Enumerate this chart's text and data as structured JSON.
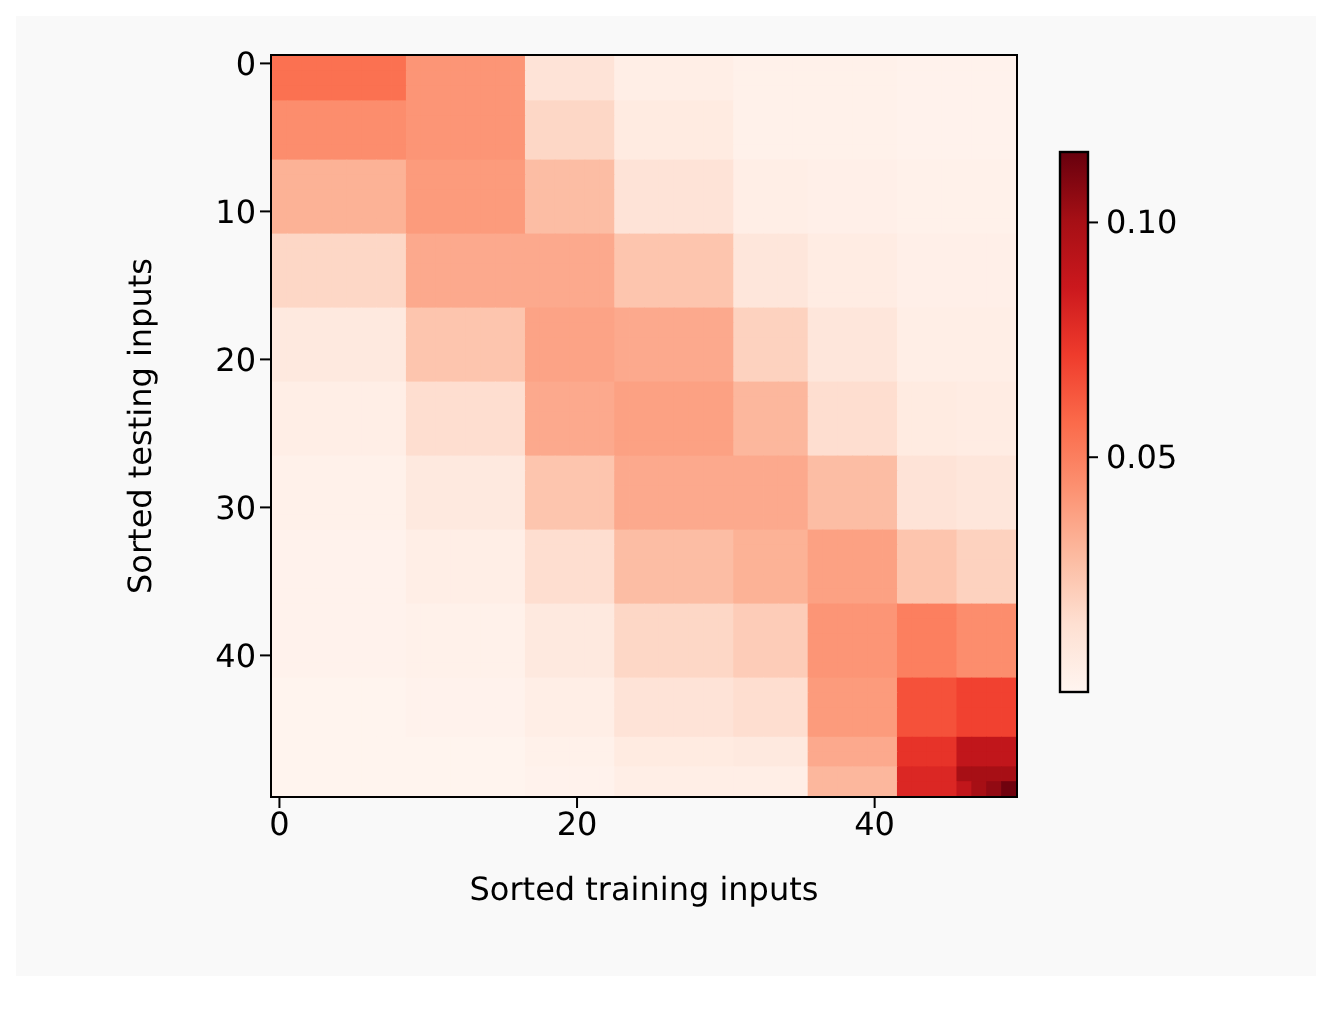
{
  "chart_data": {
    "type": "heatmap",
    "xlabel": "Sorted training inputs",
    "ylabel": "Sorted testing inputs",
    "categories": [
      "0",
      null,
      null,
      null,
      null,
      null,
      null,
      null,
      null,
      null,
      null,
      null,
      null,
      null,
      null,
      null,
      null,
      null,
      null,
      null,
      "20",
      null,
      null,
      null,
      null,
      null,
      null,
      null,
      null,
      null,
      null,
      null,
      null,
      null,
      null,
      null,
      null,
      null,
      null,
      null,
      "40",
      null,
      null,
      null,
      null,
      null,
      null,
      null,
      null,
      null
    ],
    "y_categories": [
      "0",
      null,
      null,
      null,
      null,
      null,
      null,
      null,
      null,
      null,
      "10",
      null,
      null,
      null,
      null,
      null,
      null,
      null,
      null,
      null,
      "20",
      null,
      null,
      null,
      null,
      null,
      null,
      null,
      null,
      null,
      "30",
      null,
      null,
      null,
      null,
      null,
      null,
      null,
      null,
      null,
      "40",
      null,
      null,
      null,
      null,
      null,
      null,
      null,
      null,
      null
    ],
    "clim": [
      0,
      0.115
    ],
    "cticks": [
      0.05,
      {
        "value": 0.1,
        "label": "0.10"
      }
    ],
    "cells": [
      [
        0.055,
        0.055,
        0.055,
        0.055,
        0.055,
        0.055,
        0.055,
        0.055,
        0.055,
        0.042,
        0.042,
        0.042,
        0.042,
        0.042,
        0.042,
        0.042,
        0.042,
        0.012,
        0.012,
        0.012,
        0.012,
        0.012,
        0.012,
        0.005,
        0.005,
        0.005,
        0.005,
        0.005,
        0.005,
        0.005,
        0.005,
        0.003,
        0.003,
        0.003,
        0.003,
        0.003,
        0.003,
        0.003,
        0.003,
        0.003,
        0.003,
        0.003,
        0.002,
        0.002,
        0.002,
        0.002,
        0.002,
        0.002,
        0.002,
        0.002
      ],
      [
        0.055,
        0.055,
        0.055,
        0.055,
        0.055,
        0.055,
        0.055,
        0.055,
        0.055,
        0.042,
        0.042,
        0.042,
        0.042,
        0.042,
        0.042,
        0.042,
        0.042,
        0.012,
        0.012,
        0.012,
        0.012,
        0.012,
        0.012,
        0.005,
        0.005,
        0.005,
        0.005,
        0.005,
        0.005,
        0.005,
        0.005,
        0.003,
        0.003,
        0.003,
        0.003,
        0.003,
        0.003,
        0.003,
        0.003,
        0.003,
        0.003,
        0.003,
        0.002,
        0.002,
        0.002,
        0.002,
        0.002,
        0.002,
        0.002,
        0.002
      ],
      [
        0.055,
        0.055,
        0.055,
        0.055,
        0.055,
        0.055,
        0.055,
        0.055,
        0.055,
        0.042,
        0.042,
        0.042,
        0.042,
        0.042,
        0.042,
        0.042,
        0.042,
        0.012,
        0.012,
        0.012,
        0.012,
        0.012,
        0.012,
        0.005,
        0.005,
        0.005,
        0.005,
        0.005,
        0.005,
        0.005,
        0.005,
        0.003,
        0.003,
        0.003,
        0.003,
        0.003,
        0.003,
        0.003,
        0.003,
        0.003,
        0.003,
        0.003,
        0.002,
        0.002,
        0.002,
        0.002,
        0.002,
        0.002,
        0.002,
        0.002
      ],
      [
        0.045,
        0.045,
        0.045,
        0.045,
        0.045,
        0.045,
        0.045,
        0.045,
        0.045,
        0.042,
        0.042,
        0.042,
        0.042,
        0.042,
        0.042,
        0.042,
        0.042,
        0.018,
        0.018,
        0.018,
        0.018,
        0.018,
        0.018,
        0.007,
        0.007,
        0.007,
        0.007,
        0.007,
        0.007,
        0.007,
        0.007,
        0.003,
        0.003,
        0.003,
        0.003,
        0.003,
        0.003,
        0.003,
        0.003,
        0.003,
        0.003,
        0.003,
        0.002,
        0.002,
        0.002,
        0.002,
        0.002,
        0.002,
        0.002,
        0.002
      ],
      [
        0.045,
        0.045,
        0.045,
        0.045,
        0.045,
        0.045,
        0.045,
        0.045,
        0.045,
        0.042,
        0.042,
        0.042,
        0.042,
        0.042,
        0.042,
        0.042,
        0.042,
        0.018,
        0.018,
        0.018,
        0.018,
        0.018,
        0.018,
        0.007,
        0.007,
        0.007,
        0.007,
        0.007,
        0.007,
        0.007,
        0.007,
        0.003,
        0.003,
        0.003,
        0.003,
        0.003,
        0.003,
        0.003,
        0.003,
        0.003,
        0.003,
        0.003,
        0.002,
        0.002,
        0.002,
        0.002,
        0.002,
        0.002,
        0.002,
        0.002
      ],
      [
        0.045,
        0.045,
        0.045,
        0.045,
        0.045,
        0.045,
        0.045,
        0.045,
        0.045,
        0.042,
        0.042,
        0.042,
        0.042,
        0.042,
        0.042,
        0.042,
        0.042,
        0.018,
        0.018,
        0.018,
        0.018,
        0.018,
        0.018,
        0.007,
        0.007,
        0.007,
        0.007,
        0.007,
        0.007,
        0.007,
        0.007,
        0.003,
        0.003,
        0.003,
        0.003,
        0.003,
        0.003,
        0.003,
        0.003,
        0.003,
        0.003,
        0.003,
        0.002,
        0.002,
        0.002,
        0.002,
        0.002,
        0.002,
        0.002,
        0.002
      ],
      [
        0.045,
        0.045,
        0.045,
        0.045,
        0.045,
        0.045,
        0.045,
        0.045,
        0.045,
        0.042,
        0.042,
        0.042,
        0.042,
        0.042,
        0.042,
        0.042,
        0.042,
        0.018,
        0.018,
        0.018,
        0.018,
        0.018,
        0.018,
        0.007,
        0.007,
        0.007,
        0.007,
        0.007,
        0.007,
        0.007,
        0.007,
        0.003,
        0.003,
        0.003,
        0.003,
        0.003,
        0.003,
        0.003,
        0.003,
        0.003,
        0.003,
        0.003,
        0.002,
        0.002,
        0.002,
        0.002,
        0.002,
        0.002,
        0.002,
        0.002
      ],
      [
        0.032,
        0.032,
        0.032,
        0.032,
        0.032,
        0.032,
        0.032,
        0.032,
        0.032,
        0.04,
        0.04,
        0.04,
        0.04,
        0.04,
        0.04,
        0.04,
        0.04,
        0.028,
        0.028,
        0.028,
        0.028,
        0.028,
        0.028,
        0.012,
        0.012,
        0.012,
        0.012,
        0.012,
        0.012,
        0.012,
        0.012,
        0.005,
        0.005,
        0.005,
        0.005,
        0.005,
        0.004,
        0.004,
        0.004,
        0.004,
        0.004,
        0.004,
        0.003,
        0.003,
        0.003,
        0.003,
        0.003,
        0.003,
        0.003,
        0.003
      ],
      [
        0.032,
        0.032,
        0.032,
        0.032,
        0.032,
        0.032,
        0.032,
        0.032,
        0.032,
        0.04,
        0.04,
        0.04,
        0.04,
        0.04,
        0.04,
        0.04,
        0.04,
        0.028,
        0.028,
        0.028,
        0.028,
        0.028,
        0.028,
        0.012,
        0.012,
        0.012,
        0.012,
        0.012,
        0.012,
        0.012,
        0.012,
        0.005,
        0.005,
        0.005,
        0.005,
        0.005,
        0.004,
        0.004,
        0.004,
        0.004,
        0.004,
        0.004,
        0.003,
        0.003,
        0.003,
        0.003,
        0.003,
        0.003,
        0.003,
        0.003
      ],
      [
        0.032,
        0.032,
        0.032,
        0.032,
        0.032,
        0.032,
        0.032,
        0.032,
        0.032,
        0.04,
        0.04,
        0.04,
        0.04,
        0.04,
        0.04,
        0.04,
        0.04,
        0.028,
        0.028,
        0.028,
        0.028,
        0.028,
        0.028,
        0.012,
        0.012,
        0.012,
        0.012,
        0.012,
        0.012,
        0.012,
        0.012,
        0.005,
        0.005,
        0.005,
        0.005,
        0.005,
        0.004,
        0.004,
        0.004,
        0.004,
        0.004,
        0.004,
        0.003,
        0.003,
        0.003,
        0.003,
        0.003,
        0.003,
        0.003,
        0.003
      ],
      [
        0.032,
        0.032,
        0.032,
        0.032,
        0.032,
        0.032,
        0.032,
        0.032,
        0.032,
        0.04,
        0.04,
        0.04,
        0.04,
        0.04,
        0.04,
        0.04,
        0.04,
        0.028,
        0.028,
        0.028,
        0.028,
        0.028,
        0.028,
        0.012,
        0.012,
        0.012,
        0.012,
        0.012,
        0.012,
        0.012,
        0.012,
        0.005,
        0.005,
        0.005,
        0.005,
        0.005,
        0.004,
        0.004,
        0.004,
        0.004,
        0.004,
        0.004,
        0.003,
        0.003,
        0.003,
        0.003,
        0.003,
        0.003,
        0.003,
        0.003
      ],
      [
        0.032,
        0.032,
        0.032,
        0.032,
        0.032,
        0.032,
        0.032,
        0.032,
        0.032,
        0.04,
        0.04,
        0.04,
        0.04,
        0.04,
        0.04,
        0.04,
        0.04,
        0.028,
        0.028,
        0.028,
        0.028,
        0.028,
        0.028,
        0.012,
        0.012,
        0.012,
        0.012,
        0.012,
        0.012,
        0.012,
        0.012,
        0.005,
        0.005,
        0.005,
        0.005,
        0.005,
        0.004,
        0.004,
        0.004,
        0.004,
        0.004,
        0.004,
        0.003,
        0.003,
        0.003,
        0.003,
        0.003,
        0.003,
        0.003,
        0.003
      ],
      [
        0.018,
        0.018,
        0.018,
        0.018,
        0.018,
        0.018,
        0.018,
        0.018,
        0.018,
        0.035,
        0.035,
        0.035,
        0.035,
        0.035,
        0.035,
        0.035,
        0.035,
        0.035,
        0.035,
        0.035,
        0.035,
        0.035,
        0.035,
        0.025,
        0.025,
        0.025,
        0.025,
        0.025,
        0.025,
        0.025,
        0.025,
        0.01,
        0.01,
        0.01,
        0.01,
        0.01,
        0.006,
        0.006,
        0.006,
        0.006,
        0.006,
        0.006,
        0.004,
        0.004,
        0.004,
        0.004,
        0.004,
        0.004,
        0.004,
        0.004
      ],
      [
        0.018,
        0.018,
        0.018,
        0.018,
        0.018,
        0.018,
        0.018,
        0.018,
        0.018,
        0.035,
        0.035,
        0.035,
        0.035,
        0.035,
        0.035,
        0.035,
        0.035,
        0.035,
        0.035,
        0.035,
        0.035,
        0.035,
        0.035,
        0.025,
        0.025,
        0.025,
        0.025,
        0.025,
        0.025,
        0.025,
        0.025,
        0.01,
        0.01,
        0.01,
        0.01,
        0.01,
        0.006,
        0.006,
        0.006,
        0.006,
        0.006,
        0.006,
        0.004,
        0.004,
        0.004,
        0.004,
        0.004,
        0.004,
        0.004,
        0.004
      ],
      [
        0.018,
        0.018,
        0.018,
        0.018,
        0.018,
        0.018,
        0.018,
        0.018,
        0.018,
        0.035,
        0.035,
        0.035,
        0.035,
        0.035,
        0.035,
        0.035,
        0.035,
        0.035,
        0.035,
        0.035,
        0.035,
        0.035,
        0.035,
        0.025,
        0.025,
        0.025,
        0.025,
        0.025,
        0.025,
        0.025,
        0.025,
        0.01,
        0.01,
        0.01,
        0.01,
        0.01,
        0.006,
        0.006,
        0.006,
        0.006,
        0.006,
        0.006,
        0.004,
        0.004,
        0.004,
        0.004,
        0.004,
        0.004,
        0.004,
        0.004
      ],
      [
        0.018,
        0.018,
        0.018,
        0.018,
        0.018,
        0.018,
        0.018,
        0.018,
        0.018,
        0.035,
        0.035,
        0.035,
        0.035,
        0.035,
        0.035,
        0.035,
        0.035,
        0.035,
        0.035,
        0.035,
        0.035,
        0.035,
        0.035,
        0.025,
        0.025,
        0.025,
        0.025,
        0.025,
        0.025,
        0.025,
        0.025,
        0.01,
        0.01,
        0.01,
        0.01,
        0.01,
        0.006,
        0.006,
        0.006,
        0.006,
        0.006,
        0.006,
        0.004,
        0.004,
        0.004,
        0.004,
        0.004,
        0.004,
        0.004,
        0.004
      ],
      [
        0.018,
        0.018,
        0.018,
        0.018,
        0.018,
        0.018,
        0.018,
        0.018,
        0.018,
        0.035,
        0.035,
        0.035,
        0.035,
        0.035,
        0.035,
        0.035,
        0.035,
        0.035,
        0.035,
        0.035,
        0.035,
        0.035,
        0.035,
        0.025,
        0.025,
        0.025,
        0.025,
        0.025,
        0.025,
        0.025,
        0.025,
        0.01,
        0.01,
        0.01,
        0.01,
        0.01,
        0.006,
        0.006,
        0.006,
        0.006,
        0.006,
        0.006,
        0.004,
        0.004,
        0.004,
        0.004,
        0.004,
        0.004,
        0.004,
        0.004
      ],
      [
        0.008,
        0.008,
        0.008,
        0.008,
        0.008,
        0.008,
        0.008,
        0.008,
        0.008,
        0.025,
        0.025,
        0.025,
        0.025,
        0.025,
        0.025,
        0.025,
        0.025,
        0.037,
        0.037,
        0.037,
        0.037,
        0.037,
        0.037,
        0.035,
        0.035,
        0.035,
        0.035,
        0.035,
        0.035,
        0.035,
        0.035,
        0.02,
        0.02,
        0.02,
        0.02,
        0.02,
        0.01,
        0.01,
        0.01,
        0.01,
        0.01,
        0.01,
        0.005,
        0.005,
        0.005,
        0.005,
        0.005,
        0.005,
        0.005,
        0.005
      ],
      [
        0.008,
        0.008,
        0.008,
        0.008,
        0.008,
        0.008,
        0.008,
        0.008,
        0.008,
        0.025,
        0.025,
        0.025,
        0.025,
        0.025,
        0.025,
        0.025,
        0.025,
        0.037,
        0.037,
        0.037,
        0.037,
        0.037,
        0.037,
        0.035,
        0.035,
        0.035,
        0.035,
        0.035,
        0.035,
        0.035,
        0.035,
        0.02,
        0.02,
        0.02,
        0.02,
        0.02,
        0.01,
        0.01,
        0.01,
        0.01,
        0.01,
        0.01,
        0.005,
        0.005,
        0.005,
        0.005,
        0.005,
        0.005,
        0.005,
        0.005
      ],
      [
        0.008,
        0.008,
        0.008,
        0.008,
        0.008,
        0.008,
        0.008,
        0.008,
        0.008,
        0.025,
        0.025,
        0.025,
        0.025,
        0.025,
        0.025,
        0.025,
        0.025,
        0.037,
        0.037,
        0.037,
        0.037,
        0.037,
        0.037,
        0.035,
        0.035,
        0.035,
        0.035,
        0.035,
        0.035,
        0.035,
        0.035,
        0.02,
        0.02,
        0.02,
        0.02,
        0.02,
        0.01,
        0.01,
        0.01,
        0.01,
        0.01,
        0.01,
        0.005,
        0.005,
        0.005,
        0.005,
        0.005,
        0.005,
        0.005,
        0.005
      ],
      [
        0.008,
        0.008,
        0.008,
        0.008,
        0.008,
        0.008,
        0.008,
        0.008,
        0.008,
        0.025,
        0.025,
        0.025,
        0.025,
        0.025,
        0.025,
        0.025,
        0.025,
        0.037,
        0.037,
        0.037,
        0.037,
        0.037,
        0.037,
        0.035,
        0.035,
        0.035,
        0.035,
        0.035,
        0.035,
        0.035,
        0.035,
        0.02,
        0.02,
        0.02,
        0.02,
        0.02,
        0.01,
        0.01,
        0.01,
        0.01,
        0.01,
        0.01,
        0.005,
        0.005,
        0.005,
        0.005,
        0.005,
        0.005,
        0.005,
        0.005
      ],
      [
        0.008,
        0.008,
        0.008,
        0.008,
        0.008,
        0.008,
        0.008,
        0.008,
        0.008,
        0.025,
        0.025,
        0.025,
        0.025,
        0.025,
        0.025,
        0.025,
        0.025,
        0.037,
        0.037,
        0.037,
        0.037,
        0.037,
        0.037,
        0.035,
        0.035,
        0.035,
        0.035,
        0.035,
        0.035,
        0.035,
        0.035,
        0.02,
        0.02,
        0.02,
        0.02,
        0.02,
        0.01,
        0.01,
        0.01,
        0.01,
        0.01,
        0.01,
        0.005,
        0.005,
        0.005,
        0.005,
        0.005,
        0.005,
        0.005,
        0.005
      ],
      [
        0.005,
        0.005,
        0.005,
        0.005,
        0.005,
        0.005,
        0.005,
        0.005,
        0.005,
        0.015,
        0.015,
        0.015,
        0.015,
        0.015,
        0.015,
        0.015,
        0.015,
        0.035,
        0.035,
        0.035,
        0.035,
        0.035,
        0.035,
        0.038,
        0.038,
        0.038,
        0.038,
        0.038,
        0.038,
        0.038,
        0.038,
        0.03,
        0.03,
        0.03,
        0.03,
        0.03,
        0.015,
        0.015,
        0.015,
        0.015,
        0.015,
        0.015,
        0.007,
        0.007,
        0.007,
        0.007,
        0.006,
        0.006,
        0.006,
        0.006
      ],
      [
        0.005,
        0.005,
        0.005,
        0.005,
        0.005,
        0.005,
        0.005,
        0.005,
        0.005,
        0.015,
        0.015,
        0.015,
        0.015,
        0.015,
        0.015,
        0.015,
        0.015,
        0.035,
        0.035,
        0.035,
        0.035,
        0.035,
        0.035,
        0.038,
        0.038,
        0.038,
        0.038,
        0.038,
        0.038,
        0.038,
        0.038,
        0.03,
        0.03,
        0.03,
        0.03,
        0.03,
        0.015,
        0.015,
        0.015,
        0.015,
        0.015,
        0.015,
        0.007,
        0.007,
        0.007,
        0.007,
        0.006,
        0.006,
        0.006,
        0.006
      ],
      [
        0.005,
        0.005,
        0.005,
        0.005,
        0.005,
        0.005,
        0.005,
        0.005,
        0.005,
        0.015,
        0.015,
        0.015,
        0.015,
        0.015,
        0.015,
        0.015,
        0.015,
        0.035,
        0.035,
        0.035,
        0.035,
        0.035,
        0.035,
        0.038,
        0.038,
        0.038,
        0.038,
        0.038,
        0.038,
        0.038,
        0.038,
        0.03,
        0.03,
        0.03,
        0.03,
        0.03,
        0.015,
        0.015,
        0.015,
        0.015,
        0.015,
        0.015,
        0.007,
        0.007,
        0.007,
        0.007,
        0.006,
        0.006,
        0.006,
        0.006
      ],
      [
        0.005,
        0.005,
        0.005,
        0.005,
        0.005,
        0.005,
        0.005,
        0.005,
        0.005,
        0.015,
        0.015,
        0.015,
        0.015,
        0.015,
        0.015,
        0.015,
        0.015,
        0.035,
        0.035,
        0.035,
        0.035,
        0.035,
        0.035,
        0.038,
        0.038,
        0.038,
        0.038,
        0.038,
        0.038,
        0.038,
        0.038,
        0.03,
        0.03,
        0.03,
        0.03,
        0.03,
        0.015,
        0.015,
        0.015,
        0.015,
        0.015,
        0.015,
        0.007,
        0.007,
        0.007,
        0.007,
        0.006,
        0.006,
        0.006,
        0.006
      ],
      [
        0.005,
        0.005,
        0.005,
        0.005,
        0.005,
        0.005,
        0.005,
        0.005,
        0.005,
        0.015,
        0.015,
        0.015,
        0.015,
        0.015,
        0.015,
        0.015,
        0.015,
        0.035,
        0.035,
        0.035,
        0.035,
        0.035,
        0.035,
        0.038,
        0.038,
        0.038,
        0.038,
        0.038,
        0.038,
        0.038,
        0.038,
        0.03,
        0.03,
        0.03,
        0.03,
        0.03,
        0.015,
        0.015,
        0.015,
        0.015,
        0.015,
        0.015,
        0.007,
        0.007,
        0.007,
        0.007,
        0.006,
        0.006,
        0.006,
        0.006
      ],
      [
        0.003,
        0.003,
        0.003,
        0.003,
        0.003,
        0.003,
        0.003,
        0.003,
        0.003,
        0.008,
        0.008,
        0.008,
        0.008,
        0.008,
        0.008,
        0.008,
        0.008,
        0.025,
        0.025,
        0.025,
        0.025,
        0.025,
        0.025,
        0.035,
        0.035,
        0.035,
        0.035,
        0.035,
        0.035,
        0.035,
        0.035,
        0.035,
        0.035,
        0.035,
        0.035,
        0.035,
        0.028,
        0.028,
        0.028,
        0.028,
        0.028,
        0.028,
        0.012,
        0.012,
        0.012,
        0.012,
        0.01,
        0.01,
        0.01,
        0.01
      ],
      [
        0.003,
        0.003,
        0.003,
        0.003,
        0.003,
        0.003,
        0.003,
        0.003,
        0.003,
        0.008,
        0.008,
        0.008,
        0.008,
        0.008,
        0.008,
        0.008,
        0.008,
        0.025,
        0.025,
        0.025,
        0.025,
        0.025,
        0.025,
        0.035,
        0.035,
        0.035,
        0.035,
        0.035,
        0.035,
        0.035,
        0.035,
        0.035,
        0.035,
        0.035,
        0.035,
        0.035,
        0.028,
        0.028,
        0.028,
        0.028,
        0.028,
        0.028,
        0.012,
        0.012,
        0.012,
        0.012,
        0.01,
        0.01,
        0.01,
        0.01
      ],
      [
        0.003,
        0.003,
        0.003,
        0.003,
        0.003,
        0.003,
        0.003,
        0.003,
        0.003,
        0.008,
        0.008,
        0.008,
        0.008,
        0.008,
        0.008,
        0.008,
        0.008,
        0.025,
        0.025,
        0.025,
        0.025,
        0.025,
        0.025,
        0.035,
        0.035,
        0.035,
        0.035,
        0.035,
        0.035,
        0.035,
        0.035,
        0.035,
        0.035,
        0.035,
        0.035,
        0.035,
        0.028,
        0.028,
        0.028,
        0.028,
        0.028,
        0.028,
        0.012,
        0.012,
        0.012,
        0.012,
        0.01,
        0.01,
        0.01,
        0.01
      ],
      [
        0.003,
        0.003,
        0.003,
        0.003,
        0.003,
        0.003,
        0.003,
        0.003,
        0.003,
        0.008,
        0.008,
        0.008,
        0.008,
        0.008,
        0.008,
        0.008,
        0.008,
        0.025,
        0.025,
        0.025,
        0.025,
        0.025,
        0.025,
        0.035,
        0.035,
        0.035,
        0.035,
        0.035,
        0.035,
        0.035,
        0.035,
        0.035,
        0.035,
        0.035,
        0.035,
        0.035,
        0.028,
        0.028,
        0.028,
        0.028,
        0.028,
        0.028,
        0.012,
        0.012,
        0.012,
        0.012,
        0.01,
        0.01,
        0.01,
        0.01
      ],
      [
        0.003,
        0.003,
        0.003,
        0.003,
        0.003,
        0.003,
        0.003,
        0.003,
        0.003,
        0.008,
        0.008,
        0.008,
        0.008,
        0.008,
        0.008,
        0.008,
        0.008,
        0.025,
        0.025,
        0.025,
        0.025,
        0.025,
        0.025,
        0.035,
        0.035,
        0.035,
        0.035,
        0.035,
        0.035,
        0.035,
        0.035,
        0.035,
        0.035,
        0.035,
        0.035,
        0.035,
        0.028,
        0.028,
        0.028,
        0.028,
        0.028,
        0.028,
        0.012,
        0.012,
        0.012,
        0.012,
        0.01,
        0.01,
        0.01,
        0.01
      ],
      [
        0.002,
        0.002,
        0.002,
        0.002,
        0.002,
        0.002,
        0.002,
        0.002,
        0.002,
        0.005,
        0.005,
        0.005,
        0.005,
        0.005,
        0.005,
        0.005,
        0.005,
        0.015,
        0.015,
        0.015,
        0.015,
        0.015,
        0.015,
        0.028,
        0.028,
        0.028,
        0.028,
        0.028,
        0.028,
        0.028,
        0.028,
        0.032,
        0.032,
        0.032,
        0.032,
        0.032,
        0.038,
        0.038,
        0.038,
        0.038,
        0.038,
        0.038,
        0.025,
        0.025,
        0.025,
        0.025,
        0.02,
        0.02,
        0.02,
        0.02
      ],
      [
        0.002,
        0.002,
        0.002,
        0.002,
        0.002,
        0.002,
        0.002,
        0.002,
        0.002,
        0.005,
        0.005,
        0.005,
        0.005,
        0.005,
        0.005,
        0.005,
        0.005,
        0.015,
        0.015,
        0.015,
        0.015,
        0.015,
        0.015,
        0.028,
        0.028,
        0.028,
        0.028,
        0.028,
        0.028,
        0.028,
        0.028,
        0.032,
        0.032,
        0.032,
        0.032,
        0.032,
        0.038,
        0.038,
        0.038,
        0.038,
        0.038,
        0.038,
        0.025,
        0.025,
        0.025,
        0.025,
        0.02,
        0.02,
        0.02,
        0.02
      ],
      [
        0.002,
        0.002,
        0.002,
        0.002,
        0.002,
        0.002,
        0.002,
        0.002,
        0.002,
        0.005,
        0.005,
        0.005,
        0.005,
        0.005,
        0.005,
        0.005,
        0.005,
        0.015,
        0.015,
        0.015,
        0.015,
        0.015,
        0.015,
        0.028,
        0.028,
        0.028,
        0.028,
        0.028,
        0.028,
        0.028,
        0.028,
        0.032,
        0.032,
        0.032,
        0.032,
        0.032,
        0.038,
        0.038,
        0.038,
        0.038,
        0.038,
        0.038,
        0.025,
        0.025,
        0.025,
        0.025,
        0.02,
        0.02,
        0.02,
        0.02
      ],
      [
        0.002,
        0.002,
        0.002,
        0.002,
        0.002,
        0.002,
        0.002,
        0.002,
        0.002,
        0.005,
        0.005,
        0.005,
        0.005,
        0.005,
        0.005,
        0.005,
        0.005,
        0.015,
        0.015,
        0.015,
        0.015,
        0.015,
        0.015,
        0.028,
        0.028,
        0.028,
        0.028,
        0.028,
        0.028,
        0.028,
        0.028,
        0.032,
        0.032,
        0.032,
        0.032,
        0.032,
        0.038,
        0.038,
        0.038,
        0.038,
        0.038,
        0.038,
        0.025,
        0.025,
        0.025,
        0.025,
        0.02,
        0.02,
        0.02,
        0.02
      ],
      [
        0.002,
        0.002,
        0.002,
        0.002,
        0.002,
        0.002,
        0.002,
        0.002,
        0.002,
        0.005,
        0.005,
        0.005,
        0.005,
        0.005,
        0.005,
        0.005,
        0.005,
        0.015,
        0.015,
        0.015,
        0.015,
        0.015,
        0.015,
        0.028,
        0.028,
        0.028,
        0.028,
        0.028,
        0.028,
        0.028,
        0.028,
        0.032,
        0.032,
        0.032,
        0.032,
        0.032,
        0.038,
        0.038,
        0.038,
        0.038,
        0.038,
        0.038,
        0.025,
        0.025,
        0.025,
        0.025,
        0.02,
        0.02,
        0.02,
        0.02
      ],
      [
        0.002,
        0.002,
        0.002,
        0.002,
        0.002,
        0.002,
        0.002,
        0.002,
        0.002,
        0.003,
        0.003,
        0.003,
        0.003,
        0.003,
        0.003,
        0.003,
        0.003,
        0.008,
        0.008,
        0.008,
        0.008,
        0.008,
        0.008,
        0.018,
        0.018,
        0.018,
        0.018,
        0.018,
        0.018,
        0.018,
        0.018,
        0.022,
        0.022,
        0.022,
        0.022,
        0.022,
        0.042,
        0.042,
        0.042,
        0.042,
        0.042,
        0.042,
        0.05,
        0.05,
        0.05,
        0.05,
        0.045,
        0.045,
        0.045,
        0.045
      ],
      [
        0.002,
        0.002,
        0.002,
        0.002,
        0.002,
        0.002,
        0.002,
        0.002,
        0.002,
        0.003,
        0.003,
        0.003,
        0.003,
        0.003,
        0.003,
        0.003,
        0.003,
        0.008,
        0.008,
        0.008,
        0.008,
        0.008,
        0.008,
        0.018,
        0.018,
        0.018,
        0.018,
        0.018,
        0.018,
        0.018,
        0.018,
        0.022,
        0.022,
        0.022,
        0.022,
        0.022,
        0.042,
        0.042,
        0.042,
        0.042,
        0.042,
        0.042,
        0.05,
        0.05,
        0.05,
        0.05,
        0.045,
        0.045,
        0.045,
        0.045
      ],
      [
        0.002,
        0.002,
        0.002,
        0.002,
        0.002,
        0.002,
        0.002,
        0.002,
        0.002,
        0.003,
        0.003,
        0.003,
        0.003,
        0.003,
        0.003,
        0.003,
        0.003,
        0.008,
        0.008,
        0.008,
        0.008,
        0.008,
        0.008,
        0.018,
        0.018,
        0.018,
        0.018,
        0.018,
        0.018,
        0.018,
        0.018,
        0.022,
        0.022,
        0.022,
        0.022,
        0.022,
        0.042,
        0.042,
        0.042,
        0.042,
        0.042,
        0.042,
        0.05,
        0.05,
        0.05,
        0.05,
        0.045,
        0.045,
        0.045,
        0.045
      ],
      [
        0.002,
        0.002,
        0.002,
        0.002,
        0.002,
        0.002,
        0.002,
        0.002,
        0.002,
        0.003,
        0.003,
        0.003,
        0.003,
        0.003,
        0.003,
        0.003,
        0.003,
        0.008,
        0.008,
        0.008,
        0.008,
        0.008,
        0.008,
        0.018,
        0.018,
        0.018,
        0.018,
        0.018,
        0.018,
        0.018,
        0.018,
        0.022,
        0.022,
        0.022,
        0.022,
        0.022,
        0.042,
        0.042,
        0.042,
        0.042,
        0.042,
        0.042,
        0.05,
        0.05,
        0.05,
        0.05,
        0.045,
        0.045,
        0.045,
        0.045
      ],
      [
        0.002,
        0.002,
        0.002,
        0.002,
        0.002,
        0.002,
        0.002,
        0.002,
        0.002,
        0.003,
        0.003,
        0.003,
        0.003,
        0.003,
        0.003,
        0.003,
        0.003,
        0.008,
        0.008,
        0.008,
        0.008,
        0.008,
        0.008,
        0.018,
        0.018,
        0.018,
        0.018,
        0.018,
        0.018,
        0.018,
        0.018,
        0.022,
        0.022,
        0.022,
        0.022,
        0.022,
        0.042,
        0.042,
        0.042,
        0.042,
        0.042,
        0.042,
        0.05,
        0.05,
        0.05,
        0.05,
        0.045,
        0.045,
        0.045,
        0.045
      ],
      [
        0.001,
        0.001,
        0.001,
        0.001,
        0.001,
        0.001,
        0.001,
        0.001,
        0.001,
        0.002,
        0.002,
        0.002,
        0.002,
        0.002,
        0.002,
        0.002,
        0.002,
        0.005,
        0.005,
        0.005,
        0.005,
        0.005,
        0.005,
        0.012,
        0.012,
        0.012,
        0.012,
        0.012,
        0.012,
        0.012,
        0.012,
        0.015,
        0.015,
        0.015,
        0.015,
        0.015,
        0.04,
        0.04,
        0.04,
        0.04,
        0.04,
        0.04,
        0.065,
        0.065,
        0.065,
        0.065,
        0.07,
        0.07,
        0.07,
        0.07
      ],
      [
        0.001,
        0.001,
        0.001,
        0.001,
        0.001,
        0.001,
        0.001,
        0.001,
        0.001,
        0.002,
        0.002,
        0.002,
        0.002,
        0.002,
        0.002,
        0.002,
        0.002,
        0.005,
        0.005,
        0.005,
        0.005,
        0.005,
        0.005,
        0.012,
        0.012,
        0.012,
        0.012,
        0.012,
        0.012,
        0.012,
        0.012,
        0.015,
        0.015,
        0.015,
        0.015,
        0.015,
        0.04,
        0.04,
        0.04,
        0.04,
        0.04,
        0.04,
        0.065,
        0.065,
        0.065,
        0.065,
        0.07,
        0.07,
        0.07,
        0.07
      ],
      [
        0.001,
        0.001,
        0.001,
        0.001,
        0.001,
        0.001,
        0.001,
        0.001,
        0.001,
        0.002,
        0.002,
        0.002,
        0.002,
        0.002,
        0.002,
        0.002,
        0.002,
        0.005,
        0.005,
        0.005,
        0.005,
        0.005,
        0.005,
        0.012,
        0.012,
        0.012,
        0.012,
        0.012,
        0.012,
        0.012,
        0.012,
        0.015,
        0.015,
        0.015,
        0.015,
        0.015,
        0.04,
        0.04,
        0.04,
        0.04,
        0.04,
        0.04,
        0.065,
        0.065,
        0.065,
        0.065,
        0.07,
        0.07,
        0.07,
        0.07
      ],
      [
        0.001,
        0.001,
        0.001,
        0.001,
        0.001,
        0.001,
        0.001,
        0.001,
        0.001,
        0.002,
        0.002,
        0.002,
        0.002,
        0.002,
        0.002,
        0.002,
        0.002,
        0.005,
        0.005,
        0.005,
        0.005,
        0.005,
        0.005,
        0.012,
        0.012,
        0.012,
        0.012,
        0.012,
        0.012,
        0.012,
        0.012,
        0.015,
        0.015,
        0.015,
        0.015,
        0.015,
        0.04,
        0.04,
        0.04,
        0.04,
        0.04,
        0.04,
        0.065,
        0.065,
        0.065,
        0.065,
        0.07,
        0.07,
        0.07,
        0.07
      ],
      [
        0.001,
        0.001,
        0.001,
        0.001,
        0.001,
        0.001,
        0.001,
        0.001,
        0.001,
        0.001,
        0.001,
        0.001,
        0.001,
        0.001,
        0.001,
        0.001,
        0.001,
        0.003,
        0.003,
        0.003,
        0.003,
        0.003,
        0.003,
        0.007,
        0.007,
        0.007,
        0.007,
        0.007,
        0.007,
        0.007,
        0.007,
        0.008,
        0.008,
        0.008,
        0.008,
        0.008,
        0.035,
        0.035,
        0.035,
        0.035,
        0.035,
        0.035,
        0.075,
        0.075,
        0.075,
        0.075,
        0.09,
        0.09,
        0.09,
        0.09
      ],
      [
        0.001,
        0.001,
        0.001,
        0.001,
        0.001,
        0.001,
        0.001,
        0.001,
        0.001,
        0.001,
        0.001,
        0.001,
        0.001,
        0.001,
        0.001,
        0.001,
        0.001,
        0.003,
        0.003,
        0.003,
        0.003,
        0.003,
        0.003,
        0.007,
        0.007,
        0.007,
        0.007,
        0.007,
        0.007,
        0.007,
        0.007,
        0.008,
        0.008,
        0.008,
        0.008,
        0.008,
        0.035,
        0.035,
        0.035,
        0.035,
        0.035,
        0.035,
        0.075,
        0.075,
        0.075,
        0.075,
        0.09,
        0.09,
        0.09,
        0.09
      ],
      [
        0.001,
        0.001,
        0.001,
        0.001,
        0.001,
        0.001,
        0.001,
        0.001,
        0.001,
        0.001,
        0.001,
        0.001,
        0.001,
        0.001,
        0.001,
        0.001,
        0.001,
        0.002,
        0.002,
        0.002,
        0.002,
        0.002,
        0.002,
        0.005,
        0.005,
        0.005,
        0.005,
        0.005,
        0.005,
        0.005,
        0.005,
        0.005,
        0.005,
        0.005,
        0.005,
        0.005,
        0.03,
        0.03,
        0.03,
        0.03,
        0.03,
        0.03,
        0.08,
        0.08,
        0.08,
        0.08,
        0.1,
        0.1,
        0.1,
        0.1
      ],
      [
        0.001,
        0.001,
        0.001,
        0.001,
        0.001,
        0.001,
        0.001,
        0.001,
        0.001,
        0.001,
        0.001,
        0.001,
        0.001,
        0.001,
        0.001,
        0.001,
        0.001,
        0.002,
        0.002,
        0.002,
        0.002,
        0.002,
        0.002,
        0.005,
        0.005,
        0.005,
        0.005,
        0.005,
        0.005,
        0.005,
        0.005,
        0.005,
        0.005,
        0.005,
        0.005,
        0.005,
        0.03,
        0.03,
        0.03,
        0.03,
        0.03,
        0.03,
        0.08,
        0.08,
        0.08,
        0.08,
        0.09,
        0.1,
        0.105,
        0.113
      ]
    ]
  }
}
